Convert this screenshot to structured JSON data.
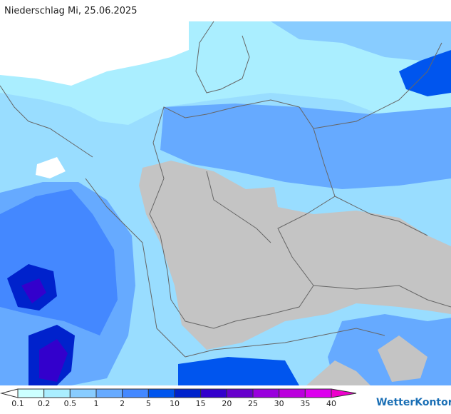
{
  "header": {
    "title": "Niederschlag Mi, 25.06.2025"
  },
  "legend": {
    "labels": [
      0.1,
      0.2,
      0.5,
      1,
      2,
      5,
      10,
      15,
      20,
      25,
      30,
      35,
      40
    ],
    "colors": [
      "#ffffff",
      "#ccffff",
      "#aaeeff",
      "#88ccff",
      "#66aaff",
      "#4488ff",
      "#0055ee",
      "#0022cc",
      "#3300cc",
      "#6600cc",
      "#9900dd",
      "#bb00dd",
      "#dd00ee",
      "#ee00cc"
    ]
  },
  "brand": "WetterKontor"
}
